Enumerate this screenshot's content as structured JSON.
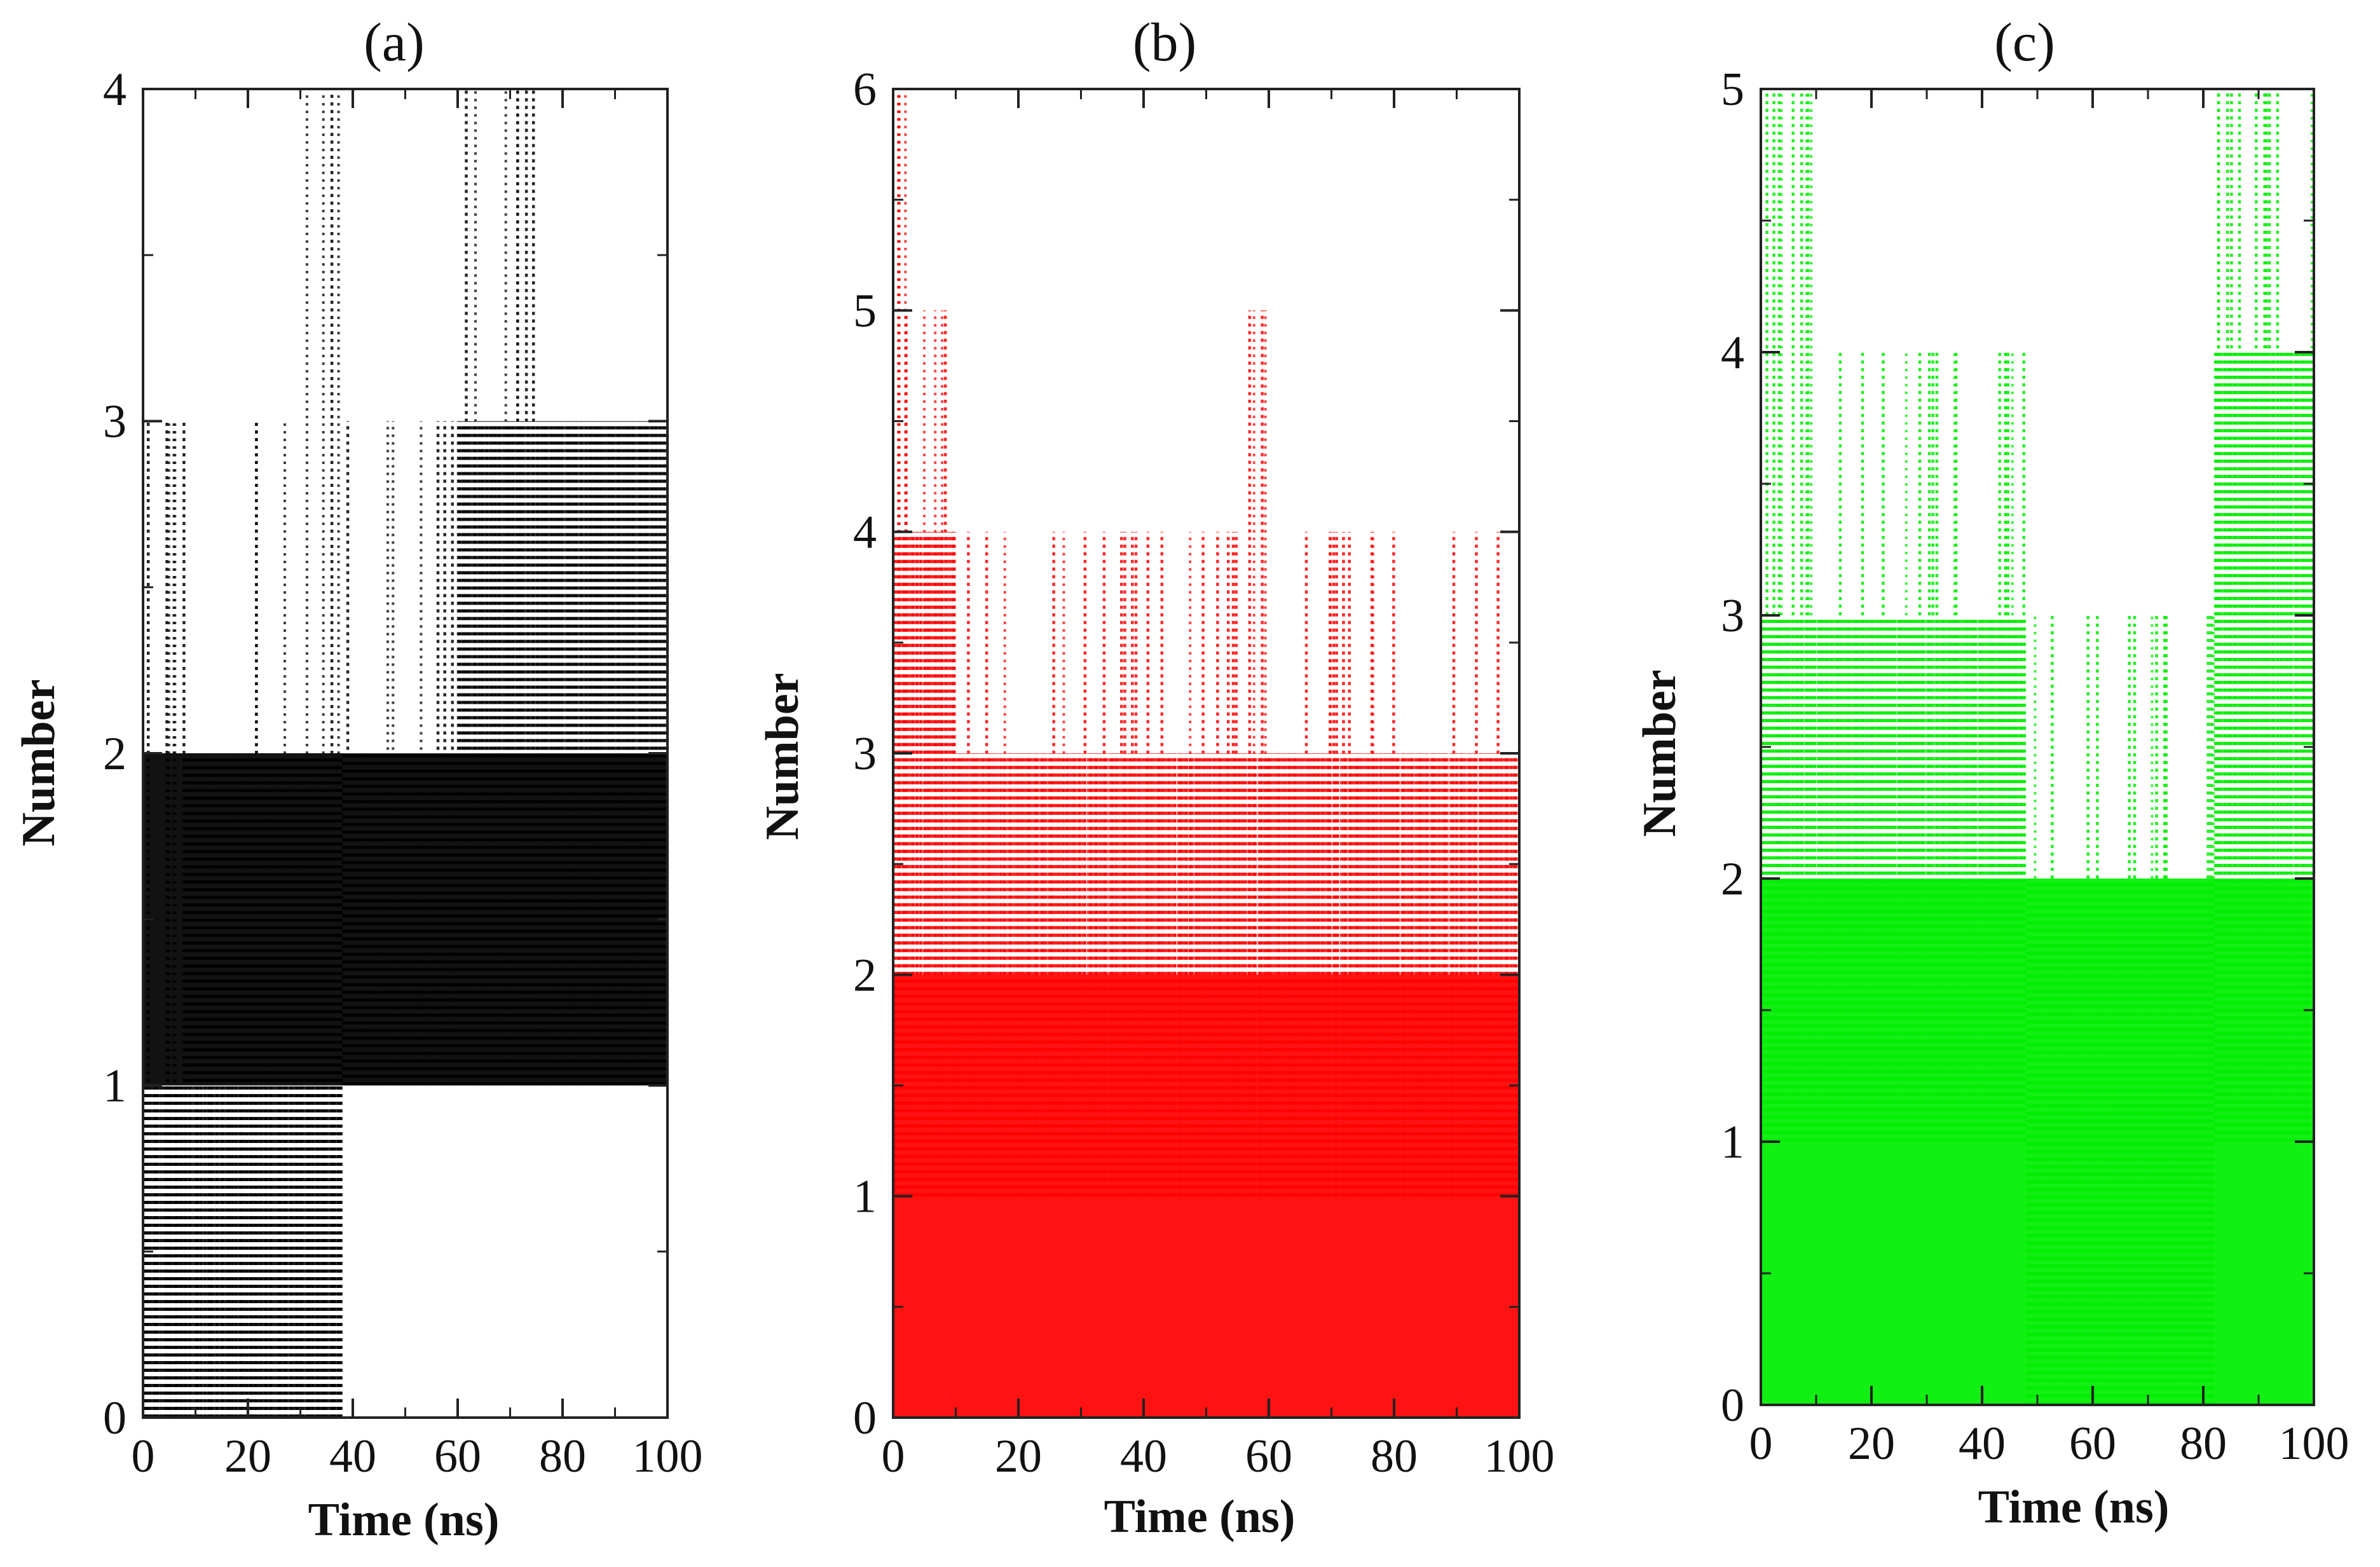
{
  "figure": {
    "description_type": "three-panel time series of hydrogen-bond style counts",
    "colors": {
      "panel_a": "#000000",
      "panel_b": "#ff0000",
      "panel_c": "#00ee00"
    }
  },
  "chart_data": [
    {
      "type": "line",
      "panel": "a",
      "title": "(a)",
      "xlabel": "Time (ns)",
      "ylabel": "Number",
      "xlim": [
        0,
        100
      ],
      "ylim": [
        0,
        4
      ],
      "xticks": [
        "0",
        "20",
        "40",
        "60",
        "80",
        "100"
      ],
      "yticks": [
        "0",
        "1",
        "2",
        "3",
        "4"
      ],
      "color": "#000000",
      "dominant_band": [
        1,
        2
      ],
      "series": [
        {
          "name": "Number",
          "segments": [
            {
              "x_start": 0,
              "x_end": 8,
              "typical": [
                0,
                1
              ],
              "peak": 3
            },
            {
              "x_start": 8,
              "x_end": 20,
              "typical": [
                0,
                2
              ],
              "peak": 2
            },
            {
              "x_start": 20,
              "x_end": 30,
              "typical": [
                0,
                2
              ],
              "peak": 3
            },
            {
              "x_start": 30,
              "x_end": 38,
              "typical": [
                0,
                2
              ],
              "peak": 4
            },
            {
              "x_start": 38,
              "x_end": 60,
              "typical": [
                1,
                2
              ],
              "peak": 3
            },
            {
              "x_start": 60,
              "x_end": 76,
              "typical": [
                1,
                3
              ],
              "peak": 4
            },
            {
              "x_start": 76,
              "x_end": 100,
              "typical": [
                1,
                3
              ],
              "peak": 3
            }
          ]
        }
      ]
    },
    {
      "type": "line",
      "panel": "b",
      "title": "(b)",
      "xlabel": "Time (ns)",
      "ylabel": "Number",
      "xlim": [
        0,
        100
      ],
      "ylim": [
        0,
        6
      ],
      "xticks": [
        "0",
        "20",
        "40",
        "60",
        "80",
        "100"
      ],
      "yticks": [
        "0",
        "1",
        "2",
        "3",
        "4",
        "5",
        "6"
      ],
      "color": "#ff0000",
      "dominant_band": [
        0,
        2
      ],
      "series": [
        {
          "name": "Number",
          "segments": [
            {
              "x_start": 0,
              "x_end": 2,
              "typical": [
                1,
                4
              ],
              "peak": 6
            },
            {
              "x_start": 2,
              "x_end": 10,
              "typical": [
                1,
                4
              ],
              "peak": 5
            },
            {
              "x_start": 10,
              "x_end": 55,
              "typical": [
                1,
                3
              ],
              "peak": 4
            },
            {
              "x_start": 55,
              "x_end": 62,
              "typical": [
                1,
                3
              ],
              "peak": 5
            },
            {
              "x_start": 62,
              "x_end": 100,
              "typical": [
                1,
                3
              ],
              "peak": 4
            }
          ]
        }
      ]
    },
    {
      "type": "line",
      "panel": "c",
      "title": "(c)",
      "xlabel": "Time (ns)",
      "ylabel": "Number",
      "xlim": [
        0,
        100
      ],
      "ylim": [
        0,
        5
      ],
      "xticks": [
        "0",
        "20",
        "40",
        "60",
        "80",
        "100"
      ],
      "yticks": [
        "0",
        "1",
        "2",
        "3",
        "4",
        "5"
      ],
      "color": "#00ee00",
      "dominant_band": [
        0,
        2
      ],
      "series": [
        {
          "name": "Number",
          "segments": [
            {
              "x_start": 0,
              "x_end": 12,
              "typical": [
                1,
                3
              ],
              "peak": 5
            },
            {
              "x_start": 12,
              "x_end": 48,
              "typical": [
                1,
                3
              ],
              "peak": 4
            },
            {
              "x_start": 48,
              "x_end": 82,
              "typical": [
                0,
                2
              ],
              "peak": 3
            },
            {
              "x_start": 82,
              "x_end": 100,
              "typical": [
                1,
                4
              ],
              "peak": 5
            }
          ]
        }
      ]
    }
  ]
}
